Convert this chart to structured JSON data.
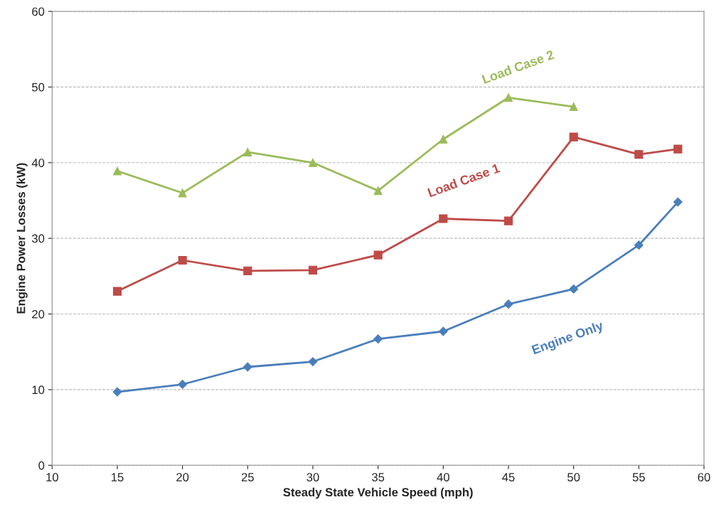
{
  "chart_data": {
    "type": "line",
    "xlabel": "Steady State Vehicle Speed (mph)",
    "ylabel": "Engine Power Losses (kW)",
    "xlim": [
      10,
      60
    ],
    "xticks": [
      10,
      15,
      20,
      25,
      30,
      35,
      40,
      45,
      50,
      55,
      60
    ],
    "ylim": [
      0,
      60
    ],
    "yticks": [
      0,
      10,
      20,
      30,
      40,
      50,
      60
    ],
    "grid": "y",
    "legend": false,
    "series": [
      {
        "name": "Engine Only",
        "color": "#4a7ebb",
        "marker": "diamond",
        "x": [
          15,
          20,
          25,
          30,
          35,
          40,
          45,
          50,
          55,
          58
        ],
        "values": [
          9.7,
          10.7,
          13.0,
          13.7,
          16.7,
          17.7,
          21.3,
          23.3,
          29.1,
          34.8
        ]
      },
      {
        "name": "Load Case 1",
        "color": "#be4b48",
        "marker": "square",
        "x": [
          15,
          20,
          25,
          30,
          35,
          40,
          45,
          50,
          55,
          58
        ],
        "values": [
          23.0,
          27.1,
          25.7,
          25.8,
          27.8,
          32.6,
          32.3,
          43.4,
          41.1,
          41.8
        ]
      },
      {
        "name": "Load Case 2",
        "color": "#9bbb59",
        "marker": "triangle",
        "x": [
          15,
          20,
          25,
          30,
          35,
          40,
          45,
          50
        ],
        "values": [
          38.9,
          36.0,
          41.4,
          40.0,
          36.3,
          43.1,
          48.6,
          47.4
        ]
      }
    ]
  }
}
